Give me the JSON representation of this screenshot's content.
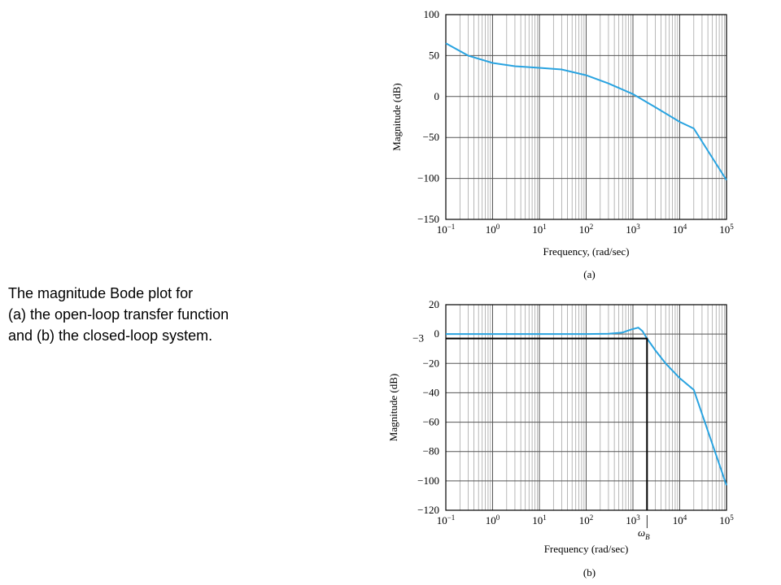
{
  "caption": [
    "The magnitude Bode plot for",
    "(a) the open-loop transfer function",
    "and (b) the closed-loop system."
  ],
  "chart_data": [
    {
      "type": "line",
      "panel_label": "(a)",
      "xlabel": "Frequency, (rad/sec)",
      "ylabel": "Magnitude (dB)",
      "xscale": "log",
      "grid": true,
      "color": "#29a3e0",
      "x": [
        0.1,
        0.3,
        1,
        3,
        10,
        30,
        100,
        300,
        1000,
        3000,
        10000,
        20000,
        50000,
        100000
      ],
      "values": [
        65,
        50,
        41,
        37,
        35,
        33,
        26,
        16,
        3,
        -13,
        -31,
        -39,
        -75,
        -102
      ],
      "xlim": [
        0.1,
        100000
      ],
      "xticks": [
        {
          "value": 0.1,
          "label": "10",
          "exponent": "−1"
        },
        {
          "value": 1,
          "label": "10",
          "exponent": "0"
        },
        {
          "value": 10,
          "label": "10",
          "exponent": "1"
        },
        {
          "value": 100,
          "label": "10",
          "exponent": "2"
        },
        {
          "value": 1000,
          "label": "10",
          "exponent": "3"
        },
        {
          "value": 10000,
          "label": "10",
          "exponent": "4"
        },
        {
          "value": 100000,
          "label": "10",
          "exponent": "5"
        }
      ],
      "ylim": [
        -150,
        100
      ],
      "yticks": [
        100,
        50,
        0,
        {
          "value": -50,
          "label": "−50"
        },
        {
          "value": -100,
          "label": "−100"
        },
        {
          "value": -150,
          "label": "−150"
        }
      ]
    },
    {
      "type": "line",
      "panel_label": "(b)",
      "xlabel": "Frequency (rad/sec)",
      "ylabel": "Magnitude (dB)",
      "xscale": "log",
      "grid": true,
      "color": "#29a3e0",
      "x": [
        0.1,
        1,
        10,
        100,
        300,
        600,
        900,
        1300,
        1600,
        2000,
        3000,
        5000,
        10000,
        20000,
        50000,
        100000
      ],
      "values": [
        0,
        0,
        0,
        0,
        0.2,
        1,
        3,
        4.4,
        2,
        -3,
        -11,
        -20,
        -30,
        -38,
        -75,
        -103
      ],
      "xlim": [
        0.1,
        100000
      ],
      "xticks": [
        {
          "value": 0.1,
          "label": "10",
          "exponent": "−1"
        },
        {
          "value": 1,
          "label": "10",
          "exponent": "0"
        },
        {
          "value": 10,
          "label": "10",
          "exponent": "1"
        },
        {
          "value": 100,
          "label": "10",
          "exponent": "2"
        },
        {
          "value": 1000,
          "label": "10",
          "exponent": "3"
        },
        {
          "value": 10000,
          "label": "10",
          "exponent": "4"
        },
        {
          "value": 100000,
          "label": "10",
          "exponent": "5"
        }
      ],
      "ylim": [
        -120,
        20
      ],
      "yticks": [
        20,
        0,
        {
          "value": -20,
          "label": "−20"
        },
        {
          "value": -40,
          "label": "−40"
        },
        {
          "value": -60,
          "label": "−60"
        },
        {
          "value": -80,
          "label": "−80"
        },
        {
          "value": -100,
          "label": "−100"
        },
        {
          "value": -120,
          "label": "−120"
        }
      ],
      "marker": {
        "x": 2000,
        "y": -3,
        "y_label": "−3",
        "label": "ω",
        "label_sub": "B"
      }
    }
  ]
}
